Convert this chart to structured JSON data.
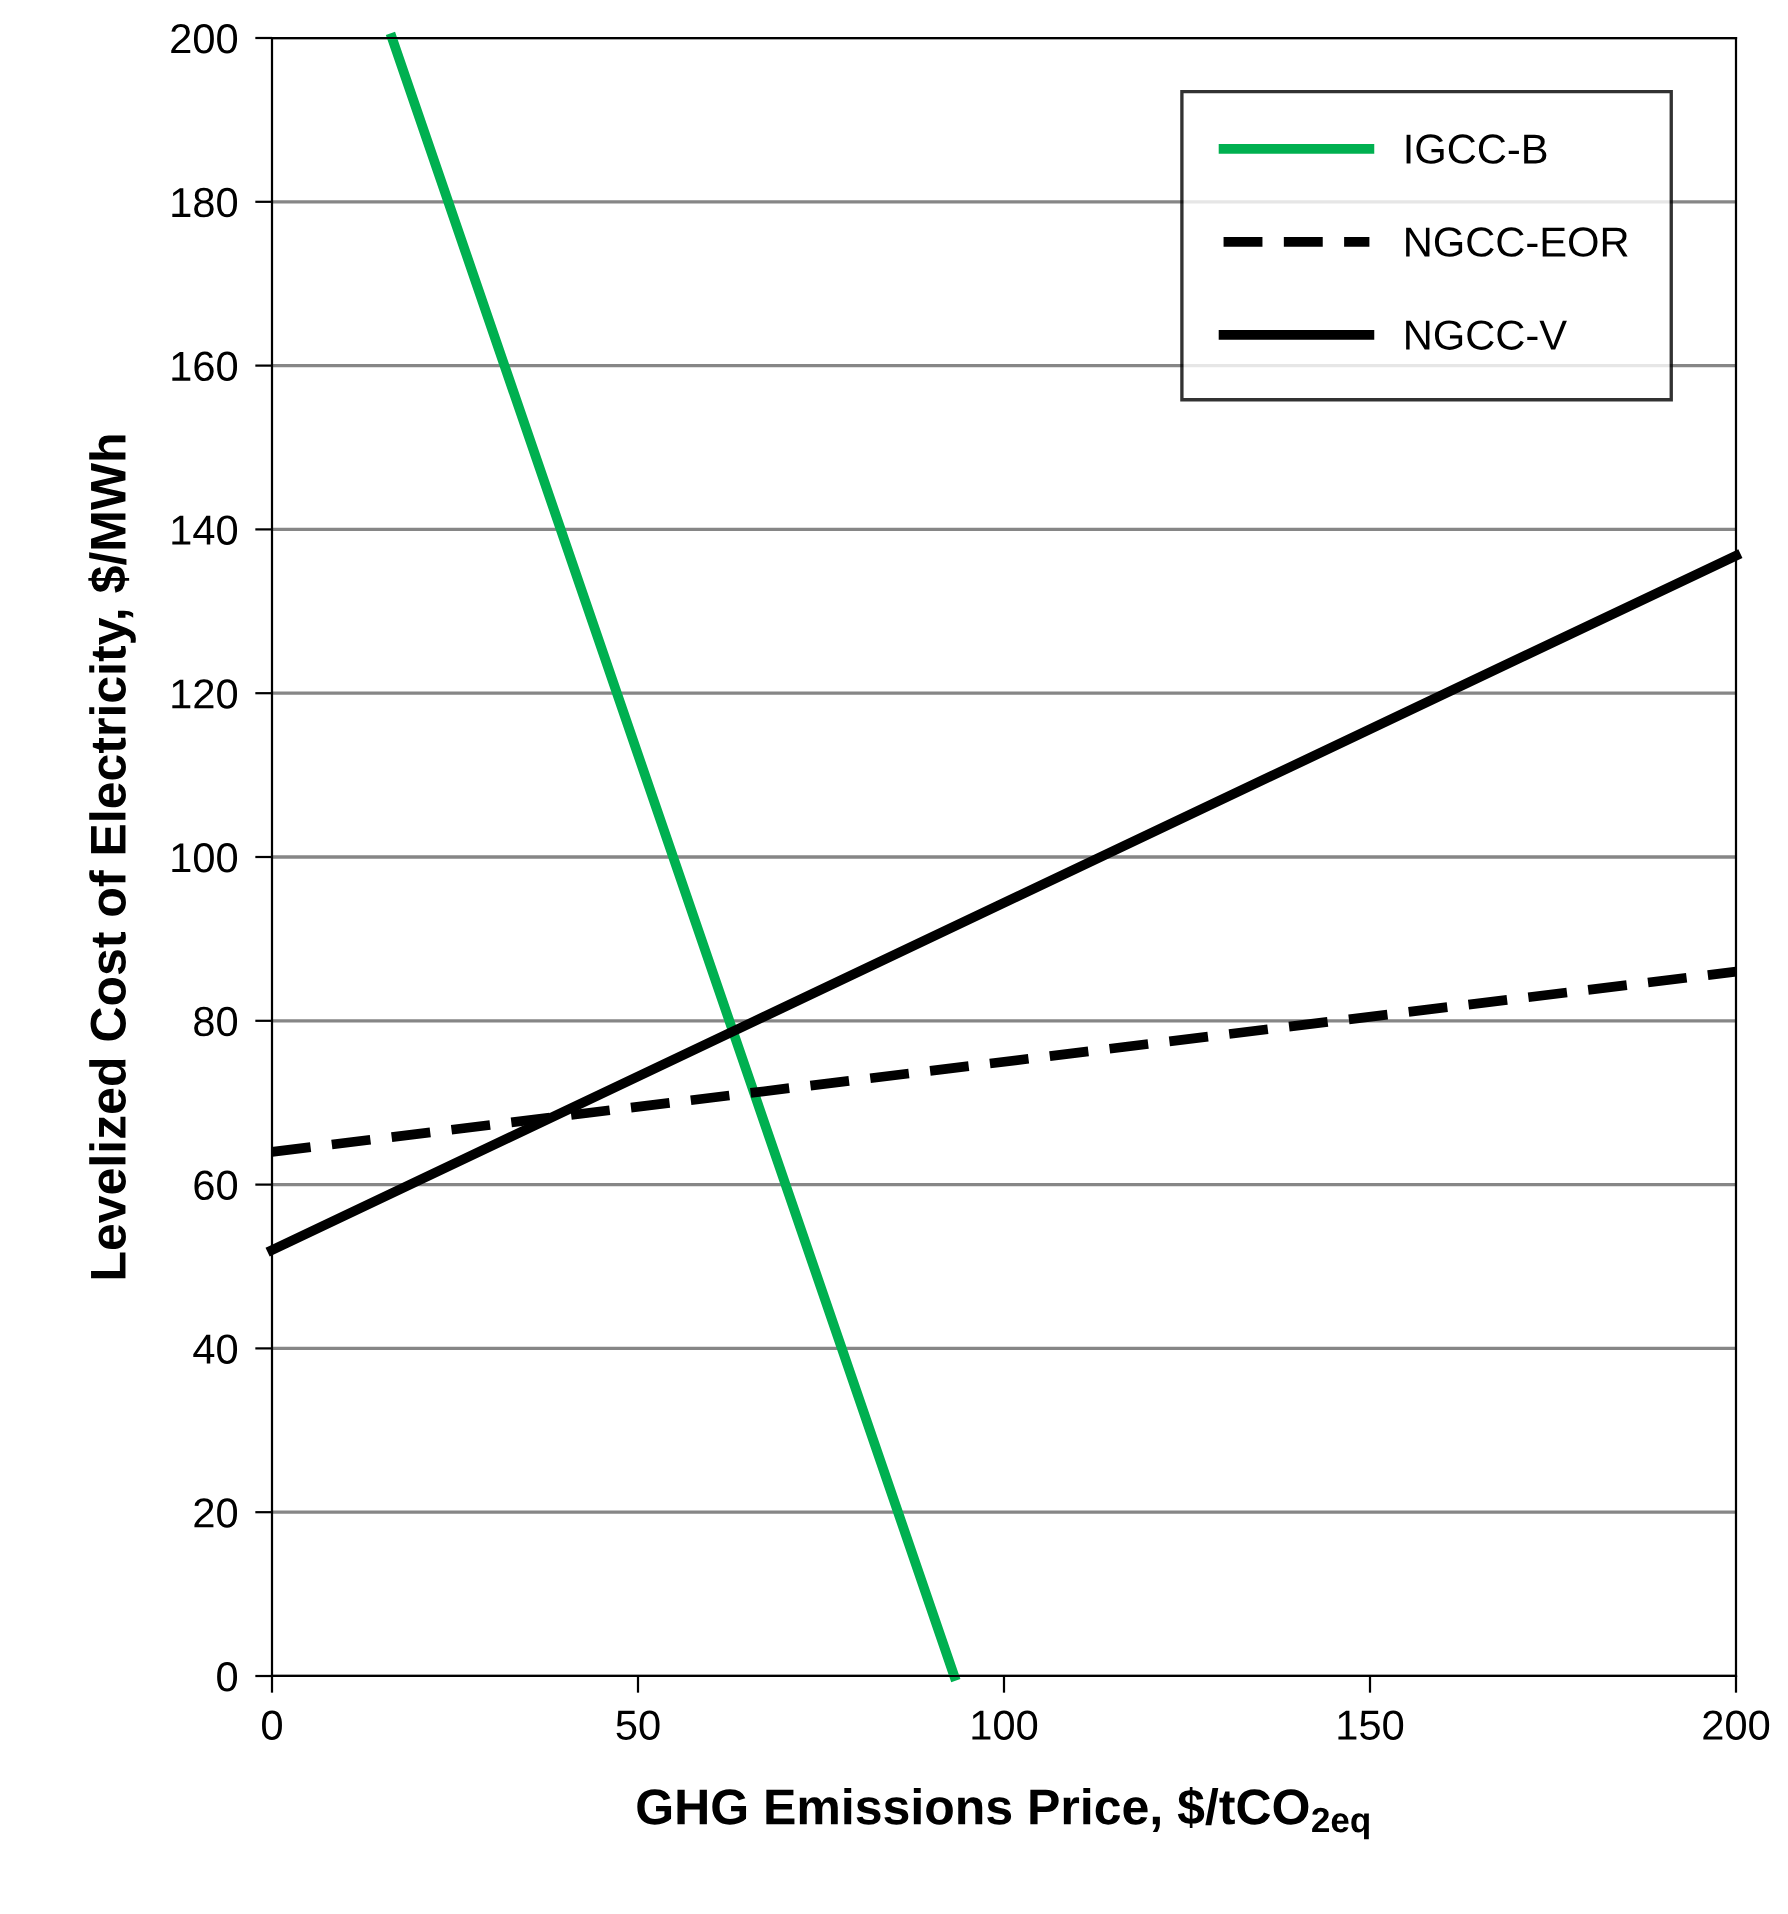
{
  "chart_data": {
    "type": "line",
    "xlabel": "GHG Emissions Price, $/tCO$_{2eq}$",
    "ylabel": "Levelized Cost of Electricity, $/MWh",
    "xlim": [
      0,
      200
    ],
    "ylim": [
      0,
      200
    ],
    "xticks": [
      0,
      50,
      100,
      150,
      200
    ],
    "yticks": [
      0,
      20,
      40,
      60,
      80,
      100,
      120,
      140,
      160,
      180,
      200
    ],
    "grid": "y",
    "legend": "top right",
    "marker": "none",
    "series": [
      {
        "name": "IGCC-B",
        "color": "#00b050",
        "x": [
          16.4,
          93.2
        ],
        "values": [
          200,
          0
        ],
        "line_style": "solid"
      },
      {
        "name": "NGCC-EOR",
        "color": "#000000",
        "x": [
          0,
          200
        ],
        "values": [
          64,
          86
        ],
        "line_style": "dashed"
      },
      {
        "name": "NGCC-V",
        "color": "#000000",
        "x": [
          0,
          200
        ],
        "values": [
          52,
          136.8
        ],
        "line_style": "solid"
      }
    ]
  }
}
